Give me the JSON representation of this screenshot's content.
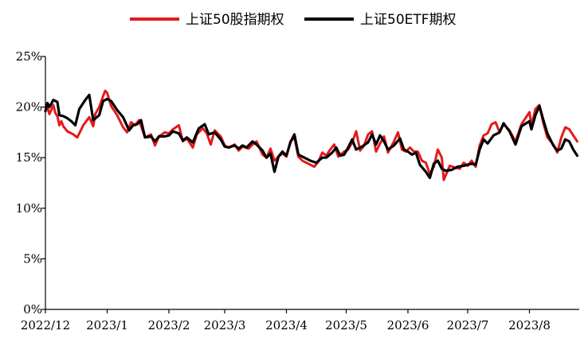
{
  "chart_data": {
    "type": "line",
    "title": "",
    "xlabel": "",
    "ylabel": "",
    "ylim": [
      0,
      25
    ],
    "y_ticks": [
      "0%",
      "5%",
      "10%",
      "15%",
      "20%",
      "25%"
    ],
    "y_tick_values": [
      0,
      5,
      10,
      15,
      20,
      25
    ],
    "x_ticks": [
      "2022/12",
      "2023/1",
      "2023/2",
      "2023/3",
      "2023/4",
      "2023/5",
      "2023/6",
      "2023/7",
      "2023/8"
    ],
    "x_tick_values": [
      "2022-12-01",
      "2023-01-01",
      "2023-02-01",
      "2023-03-01",
      "2023-04-01",
      "2023-05-01",
      "2023-06-01",
      "2023-07-01",
      "2023-08-01"
    ],
    "xlim": [
      "2022-12-01",
      "2023-08-26"
    ],
    "grid": false,
    "legend_position": "top-center",
    "series": [
      {
        "name": "上证50股指期权",
        "color": "#e31a1c",
        "points": [
          [
            "2022-12-01",
            19.6
          ],
          [
            "2022-12-02",
            20.0
          ],
          [
            "2022-12-03",
            19.3
          ],
          [
            "2022-12-05",
            20.2
          ],
          [
            "2022-12-06",
            19.4
          ],
          [
            "2022-12-07",
            19.1
          ],
          [
            "2022-12-08",
            18.2
          ],
          [
            "2022-12-09",
            18.6
          ],
          [
            "2022-12-10",
            18.1
          ],
          [
            "2022-12-12",
            17.6
          ],
          [
            "2022-12-15",
            17.3
          ],
          [
            "2022-12-17",
            17.0
          ],
          [
            "2022-12-20",
            18.2
          ],
          [
            "2022-12-23",
            19.0
          ],
          [
            "2022-12-25",
            18.1
          ],
          [
            "2022-12-26",
            19.3
          ],
          [
            "2022-12-28",
            20.0
          ],
          [
            "2022-12-30",
            21.1
          ],
          [
            "2022-12-31",
            21.6
          ],
          [
            "2023-01-01",
            21.4
          ],
          [
            "2023-01-03",
            20.1
          ],
          [
            "2023-01-06",
            19.2
          ],
          [
            "2023-01-09",
            18.0
          ],
          [
            "2023-01-11",
            17.5
          ],
          [
            "2023-01-13",
            18.5
          ],
          [
            "2023-01-15",
            18.2
          ],
          [
            "2023-01-17",
            18.7
          ],
          [
            "2023-01-20",
            17.0
          ],
          [
            "2023-01-23",
            17.3
          ],
          [
            "2023-01-25",
            16.2
          ],
          [
            "2023-01-27",
            17.1
          ],
          [
            "2023-01-30",
            17.5
          ],
          [
            "2023-02-01",
            17.4
          ],
          [
            "2023-02-03",
            17.8
          ],
          [
            "2023-02-06",
            18.2
          ],
          [
            "2023-02-08",
            16.6
          ],
          [
            "2023-02-10",
            16.9
          ],
          [
            "2023-02-13",
            16.0
          ],
          [
            "2023-02-15",
            17.3
          ],
          [
            "2023-02-18",
            17.9
          ],
          [
            "2023-02-20",
            17.4
          ],
          [
            "2023-02-22",
            16.3
          ],
          [
            "2023-02-24",
            17.7
          ],
          [
            "2023-02-27",
            17.1
          ],
          [
            "2023-03-01",
            16.2
          ],
          [
            "2023-03-03",
            16.0
          ],
          [
            "2023-03-06",
            16.3
          ],
          [
            "2023-03-08",
            15.7
          ],
          [
            "2023-03-10",
            16.1
          ],
          [
            "2023-03-13",
            15.9
          ],
          [
            "2023-03-15",
            16.3
          ],
          [
            "2023-03-17",
            16.6
          ],
          [
            "2023-03-20",
            15.3
          ],
          [
            "2023-03-22",
            15.0
          ],
          [
            "2023-03-24",
            15.9
          ],
          [
            "2023-03-26",
            14.7
          ],
          [
            "2023-03-28",
            15.1
          ],
          [
            "2023-03-30",
            15.4
          ],
          [
            "2023-04-01",
            15.1
          ],
          [
            "2023-04-03",
            16.6
          ],
          [
            "2023-04-05",
            17.0
          ],
          [
            "2023-04-07",
            15.1
          ],
          [
            "2023-04-09",
            14.7
          ],
          [
            "2023-04-12",
            14.4
          ],
          [
            "2023-04-15",
            14.1
          ],
          [
            "2023-04-17",
            14.6
          ],
          [
            "2023-04-19",
            15.5
          ],
          [
            "2023-04-21",
            15.2
          ],
          [
            "2023-04-23",
            15.8
          ],
          [
            "2023-04-25",
            16.3
          ],
          [
            "2023-04-27",
            15.1
          ],
          [
            "2023-04-30",
            15.6
          ],
          [
            "2023-05-02",
            15.8
          ],
          [
            "2023-05-04",
            16.5
          ],
          [
            "2023-05-06",
            17.6
          ],
          [
            "2023-05-08",
            15.7
          ],
          [
            "2023-05-10",
            16.2
          ],
          [
            "2023-05-12",
            17.3
          ],
          [
            "2023-05-14",
            17.6
          ],
          [
            "2023-05-16",
            15.6
          ],
          [
            "2023-05-18",
            16.4
          ],
          [
            "2023-05-20",
            17.1
          ],
          [
            "2023-05-22",
            15.5
          ],
          [
            "2023-05-25",
            16.6
          ],
          [
            "2023-05-27",
            17.5
          ],
          [
            "2023-05-29",
            15.8
          ],
          [
            "2023-05-31",
            15.6
          ],
          [
            "2023-06-02",
            16.0
          ],
          [
            "2023-06-04",
            15.6
          ],
          [
            "2023-06-06",
            15.6
          ],
          [
            "2023-06-08",
            14.7
          ],
          [
            "2023-06-10",
            14.5
          ],
          [
            "2023-06-12",
            13.4
          ],
          [
            "2023-06-14",
            14.1
          ],
          [
            "2023-06-16",
            15.8
          ],
          [
            "2023-06-18",
            15.0
          ],
          [
            "2023-06-19",
            12.8
          ],
          [
            "2023-06-22",
            14.2
          ],
          [
            "2023-06-25",
            14.0
          ],
          [
            "2023-06-27",
            13.9
          ],
          [
            "2023-06-29",
            14.5
          ],
          [
            "2023-07-01",
            14.2
          ],
          [
            "2023-07-03",
            14.7
          ],
          [
            "2023-07-05",
            14.1
          ],
          [
            "2023-07-07",
            16.2
          ],
          [
            "2023-07-09",
            17.2
          ],
          [
            "2023-07-11",
            17.4
          ],
          [
            "2023-07-13",
            18.3
          ],
          [
            "2023-07-15",
            18.5
          ],
          [
            "2023-07-17",
            17.5
          ],
          [
            "2023-07-19",
            18.3
          ],
          [
            "2023-07-22",
            17.7
          ],
          [
            "2023-07-25",
            16.6
          ],
          [
            "2023-07-28",
            18.3
          ],
          [
            "2023-08-01",
            19.5
          ],
          [
            "2023-08-02",
            18.2
          ],
          [
            "2023-08-04",
            19.8
          ],
          [
            "2023-08-06",
            20.2
          ],
          [
            "2023-08-08",
            18.4
          ],
          [
            "2023-08-10",
            17.0
          ],
          [
            "2023-08-13",
            16.3
          ],
          [
            "2023-08-15",
            15.5
          ],
          [
            "2023-08-17",
            17.0
          ],
          [
            "2023-08-19",
            18.0
          ],
          [
            "2023-08-21",
            17.8
          ],
          [
            "2023-08-23",
            17.2
          ],
          [
            "2023-08-25",
            16.6
          ]
        ]
      },
      {
        "name": "上证50ETF期权",
        "color": "#000000",
        "points": [
          [
            "2022-12-01",
            19.6
          ],
          [
            "2022-12-02",
            20.4
          ],
          [
            "2022-12-03",
            20.0
          ],
          [
            "2022-12-05",
            20.7
          ],
          [
            "2022-12-07",
            20.5
          ],
          [
            "2022-12-08",
            19.2
          ],
          [
            "2022-12-10",
            19.1
          ],
          [
            "2022-12-12",
            18.9
          ],
          [
            "2022-12-14",
            18.6
          ],
          [
            "2022-12-16",
            18.2
          ],
          [
            "2022-12-18",
            19.8
          ],
          [
            "2022-12-21",
            20.7
          ],
          [
            "2022-12-23",
            21.2
          ],
          [
            "2022-12-25",
            18.7
          ],
          [
            "2022-12-28",
            19.2
          ],
          [
            "2022-12-30",
            20.6
          ],
          [
            "2023-01-01",
            20.8
          ],
          [
            "2023-01-03",
            20.6
          ],
          [
            "2023-01-06",
            19.7
          ],
          [
            "2023-01-09",
            19.0
          ],
          [
            "2023-01-12",
            17.7
          ],
          [
            "2023-01-14",
            18.2
          ],
          [
            "2023-01-16",
            18.3
          ],
          [
            "2023-01-18",
            18.7
          ],
          [
            "2023-01-20",
            17.0
          ],
          [
            "2023-01-23",
            17.1
          ],
          [
            "2023-01-25",
            16.6
          ],
          [
            "2023-01-27",
            17.1
          ],
          [
            "2023-01-30",
            17.1
          ],
          [
            "2023-02-01",
            17.2
          ],
          [
            "2023-02-03",
            17.6
          ],
          [
            "2023-02-06",
            17.4
          ],
          [
            "2023-02-08",
            16.7
          ],
          [
            "2023-02-10",
            17.0
          ],
          [
            "2023-02-13",
            16.5
          ],
          [
            "2023-02-16",
            17.9
          ],
          [
            "2023-02-19",
            18.3
          ],
          [
            "2023-02-21",
            17.3
          ],
          [
            "2023-02-24",
            17.5
          ],
          [
            "2023-02-27",
            16.8
          ],
          [
            "2023-03-01",
            16.1
          ],
          [
            "2023-03-03",
            16.0
          ],
          [
            "2023-03-06",
            16.2
          ],
          [
            "2023-03-08",
            15.9
          ],
          [
            "2023-03-10",
            16.2
          ],
          [
            "2023-03-12",
            16.0
          ],
          [
            "2023-03-15",
            16.6
          ],
          [
            "2023-03-17",
            16.3
          ],
          [
            "2023-03-20",
            15.7
          ],
          [
            "2023-03-22",
            15.0
          ],
          [
            "2023-03-24",
            15.4
          ],
          [
            "2023-03-26",
            13.6
          ],
          [
            "2023-03-28",
            15.1
          ],
          [
            "2023-03-30",
            15.6
          ],
          [
            "2023-04-01",
            15.2
          ],
          [
            "2023-04-03",
            16.5
          ],
          [
            "2023-04-05",
            17.3
          ],
          [
            "2023-04-07",
            15.3
          ],
          [
            "2023-04-10",
            15.0
          ],
          [
            "2023-04-13",
            14.7
          ],
          [
            "2023-04-16",
            14.5
          ],
          [
            "2023-04-19",
            15.0
          ],
          [
            "2023-04-21",
            15.0
          ],
          [
            "2023-04-24",
            15.5
          ],
          [
            "2023-04-26",
            16.0
          ],
          [
            "2023-04-28",
            15.2
          ],
          [
            "2023-04-30",
            15.3
          ],
          [
            "2023-05-02",
            16.0
          ],
          [
            "2023-05-04",
            16.8
          ],
          [
            "2023-05-06",
            15.8
          ],
          [
            "2023-05-09",
            16.1
          ],
          [
            "2023-05-12",
            16.5
          ],
          [
            "2023-05-14",
            17.3
          ],
          [
            "2023-05-16",
            16.3
          ],
          [
            "2023-05-18",
            17.2
          ],
          [
            "2023-05-20",
            16.6
          ],
          [
            "2023-05-22",
            15.8
          ],
          [
            "2023-05-25",
            16.2
          ],
          [
            "2023-05-28",
            16.9
          ],
          [
            "2023-05-30",
            15.8
          ],
          [
            "2023-06-01",
            15.6
          ],
          [
            "2023-06-03",
            15.3
          ],
          [
            "2023-06-05",
            15.5
          ],
          [
            "2023-06-07",
            14.3
          ],
          [
            "2023-06-10",
            13.6
          ],
          [
            "2023-06-12",
            13.0
          ],
          [
            "2023-06-14",
            14.4
          ],
          [
            "2023-06-16",
            14.7
          ],
          [
            "2023-06-18",
            13.9
          ],
          [
            "2023-06-20",
            13.7
          ],
          [
            "2023-06-23",
            13.8
          ],
          [
            "2023-06-26",
            14.1
          ],
          [
            "2023-06-29",
            14.2
          ],
          [
            "2023-07-01",
            14.3
          ],
          [
            "2023-07-03",
            14.4
          ],
          [
            "2023-07-05",
            14.3
          ],
          [
            "2023-07-07",
            15.8
          ],
          [
            "2023-07-09",
            16.8
          ],
          [
            "2023-07-11",
            16.4
          ],
          [
            "2023-07-14",
            17.2
          ],
          [
            "2023-07-17",
            17.5
          ],
          [
            "2023-07-19",
            18.4
          ],
          [
            "2023-07-22",
            17.6
          ],
          [
            "2023-07-25",
            16.3
          ],
          [
            "2023-07-28",
            18.1
          ],
          [
            "2023-08-01",
            18.6
          ],
          [
            "2023-08-02",
            17.8
          ],
          [
            "2023-08-04",
            19.2
          ],
          [
            "2023-08-06",
            20.1
          ],
          [
            "2023-08-08",
            18.7
          ],
          [
            "2023-08-10",
            17.4
          ],
          [
            "2023-08-13",
            16.2
          ],
          [
            "2023-08-15",
            15.7
          ],
          [
            "2023-08-17",
            15.9
          ],
          [
            "2023-08-19",
            16.8
          ],
          [
            "2023-08-21",
            16.6
          ],
          [
            "2023-08-23",
            15.8
          ],
          [
            "2023-08-25",
            15.2
          ]
        ]
      }
    ]
  }
}
